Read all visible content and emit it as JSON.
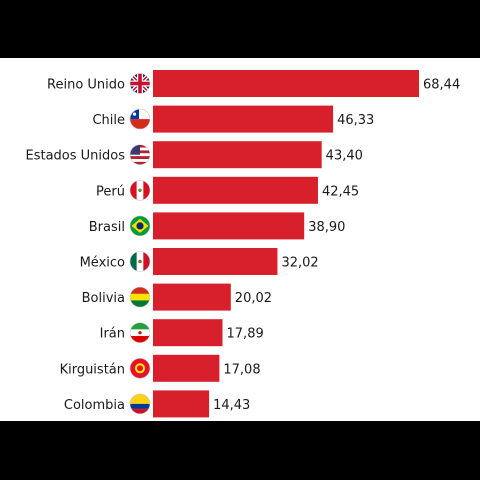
{
  "chart_data": {
    "type": "bar",
    "orientation": "horizontal",
    "title": "",
    "xlabel": "",
    "ylabel": "",
    "categories": [
      "Reino Unido",
      "Chile",
      "Estados Unidos",
      "Perú",
      "Brasil",
      "México",
      "Bolivia",
      "Irán",
      "Kirguistán",
      "Colombia"
    ],
    "values": [
      68.44,
      46.33,
      43.4,
      42.45,
      38.9,
      32.02,
      20.02,
      17.89,
      17.08,
      14.43
    ],
    "value_labels": [
      "68,44",
      "46,33",
      "43,40",
      "42,45",
      "38,90",
      "32,02",
      "20,02",
      "17,89",
      "17,08",
      "14,43"
    ],
    "flag_icons": [
      "uk-flag-icon",
      "chile-flag-icon",
      "usa-flag-icon",
      "peru-flag-icon",
      "brazil-flag-icon",
      "mexico-flag-icon",
      "bolivia-flag-icon",
      "iran-flag-icon",
      "kyrgyzstan-flag-icon",
      "colombia-flag-icon"
    ],
    "xlim": [
      0,
      68.44
    ],
    "grid": false,
    "legend": "none",
    "bar_color": "#d7202b"
  }
}
